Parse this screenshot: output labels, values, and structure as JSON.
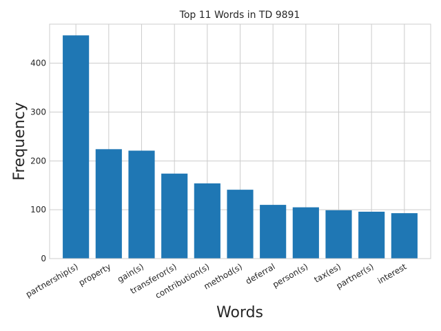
{
  "chart_data": {
    "type": "bar",
    "title": "Top 11 Words in TD 9891",
    "xlabel": "Words",
    "ylabel": "Frequency",
    "categories": [
      "partnership(s)",
      "property",
      "gain(s)",
      "transferor(s)",
      "contribution(s)",
      "method(s)",
      "deferral",
      "person(s)",
      "tax(es)",
      "partner(s)",
      "interest"
    ],
    "values": [
      457,
      224,
      221,
      174,
      154,
      141,
      110,
      105,
      99,
      96,
      93
    ],
    "ylim": [
      0,
      480
    ],
    "yticks": [
      0,
      100,
      200,
      300,
      400
    ],
    "grid": true,
    "bar_color": "#1f77b4"
  }
}
